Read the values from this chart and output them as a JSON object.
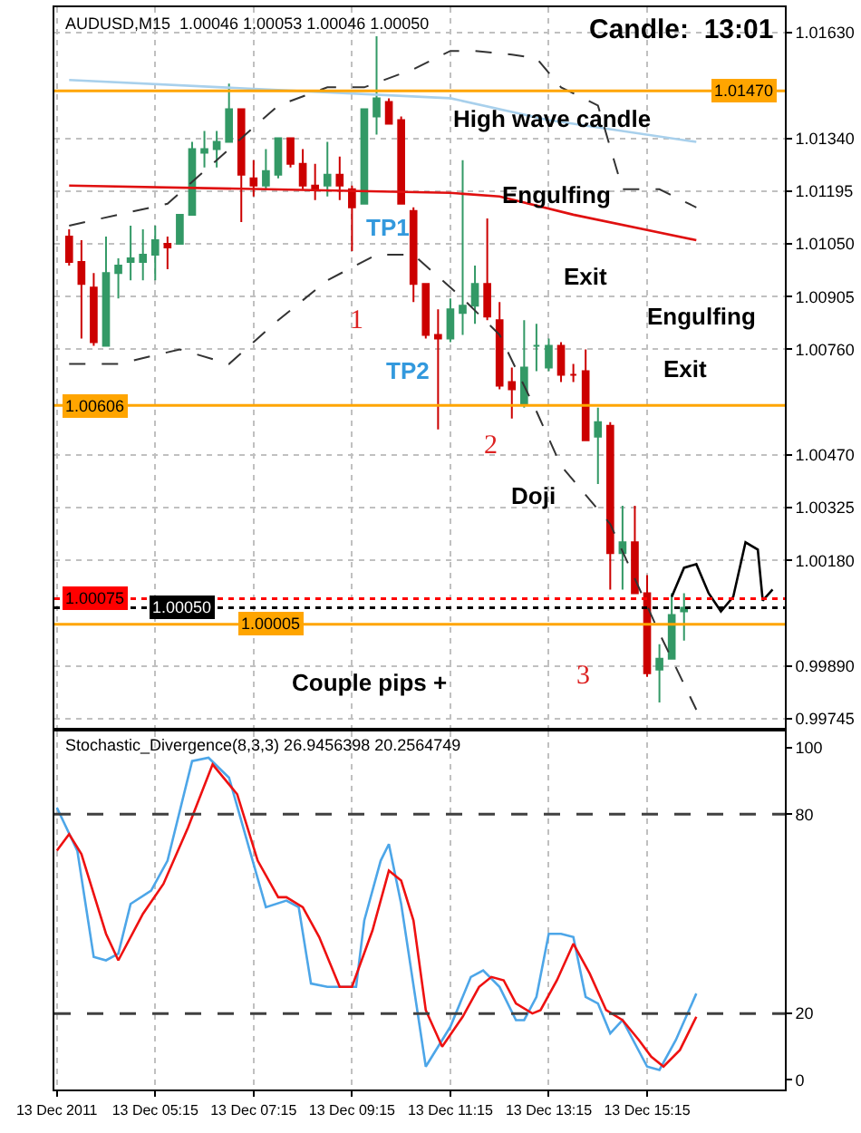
{
  "chart_data": [
    {
      "type": "candlestick",
      "title": "AUDUSD,M15  1.00046 1.00053 1.00046 1.00050",
      "x": [
        "2011-12-13T03:30",
        "2011-12-13T03:45",
        "2011-12-13T04:00",
        "2011-12-13T04:15",
        "2011-12-13T04:30",
        "2011-12-13T04:45",
        "2011-12-13T05:00",
        "2011-12-13T05:15",
        "2011-12-13T05:30",
        "2011-12-13T05:45",
        "2011-12-13T06:00",
        "2011-12-13T06:15",
        "2011-12-13T06:30",
        "2011-12-13T06:45",
        "2011-12-13T07:00",
        "2011-12-13T07:15",
        "2011-12-13T07:30",
        "2011-12-13T07:45",
        "2011-12-13T08:00",
        "2011-12-13T08:15",
        "2011-12-13T08:30",
        "2011-12-13T08:45",
        "2011-12-13T09:00",
        "2011-12-13T09:15",
        "2011-12-13T09:30",
        "2011-12-13T09:45",
        "2011-12-13T10:00",
        "2011-12-13T10:15",
        "2011-12-13T10:30",
        "2011-12-13T10:45",
        "2011-12-13T11:00",
        "2011-12-13T11:15",
        "2011-12-13T11:30",
        "2011-12-13T11:45",
        "2011-12-13T12:00",
        "2011-12-13T12:15",
        "2011-12-13T12:30",
        "2011-12-13T12:45",
        "2011-12-13T13:00",
        "2011-12-13T13:15",
        "2011-12-13T13:30",
        "2011-12-13T13:45",
        "2011-12-13T14:00",
        "2011-12-13T14:15",
        "2011-12-13T14:30",
        "2011-12-13T14:45",
        "2011-12-13T15:00",
        "2011-12-13T15:15",
        "2011-12-13T15:30",
        "2011-12-13T15:45",
        "2011-12-13T16:00"
      ],
      "ohlc": [
        [
          1.0107,
          1.0109,
          1.0099,
          1.01
        ],
        [
          1.01,
          1.0106,
          1.0079,
          1.0094
        ],
        [
          1.0093,
          1.0097,
          1.0077,
          1.0078
        ],
        [
          1.0077,
          1.0107,
          1.0077,
          1.0097
        ],
        [
          1.0097,
          1.0101,
          1.009,
          1.0099
        ],
        [
          1.01,
          1.011,
          1.0095,
          1.0101
        ],
        [
          1.01,
          1.0109,
          1.0095,
          1.0102
        ],
        [
          1.0102,
          1.011,
          1.0095,
          1.0106
        ],
        [
          1.0105,
          1.0107,
          1.0098,
          1.0104
        ],
        [
          1.0105,
          1.0113,
          1.0105,
          1.0113
        ],
        [
          1.0113,
          1.0133,
          1.0113,
          1.0131
        ],
        [
          1.013,
          1.0136,
          1.0126,
          1.0131
        ],
        [
          1.0131,
          1.0136,
          1.0126,
          1.0133
        ],
        [
          1.0133,
          1.0149,
          1.0133,
          1.0142
        ],
        [
          1.0142,
          1.0142,
          1.0111,
          1.0124
        ],
        [
          1.0123,
          1.0128,
          1.0118,
          1.0121
        ],
        [
          1.0121,
          1.0131,
          1.012,
          1.0125
        ],
        [
          1.0124,
          1.0134,
          1.0123,
          1.0134
        ],
        [
          1.0134,
          1.0134,
          1.0126,
          1.0127
        ],
        [
          1.0127,
          1.0131,
          1.012,
          1.0121
        ],
        [
          1.0121,
          1.0127,
          1.0117,
          1.012
        ],
        [
          1.0121,
          1.0133,
          1.0118,
          1.0124
        ],
        [
          1.0124,
          1.0129,
          1.0117,
          1.0121
        ],
        [
          1.012,
          1.0121,
          1.0103,
          1.0115
        ],
        [
          1.0116,
          1.0142,
          1.0116,
          1.0142
        ],
        [
          1.014,
          1.0162,
          1.0135,
          1.0145
        ],
        [
          1.0144,
          1.0145,
          1.0138,
          1.0138
        ],
        [
          1.0139,
          1.014,
          1.0116,
          1.0116
        ],
        [
          1.0114,
          1.0115,
          1.0089,
          1.0094
        ],
        [
          1.0094,
          1.0094,
          1.0079,
          1.008
        ],
        [
          1.008,
          1.0087,
          1.0054,
          1.0079
        ],
        [
          1.0079,
          1.009,
          1.0078,
          1.0087
        ],
        [
          1.0086,
          1.0128,
          1.008,
          1.0088
        ],
        [
          1.0088,
          1.0099,
          1.0083,
          1.0094
        ],
        [
          1.0094,
          1.0112,
          1.0084,
          1.0085
        ],
        [
          1.0084,
          1.0089,
          1.0065,
          1.0066
        ],
        [
          1.0067,
          1.0071,
          1.0057,
          1.0065
        ],
        [
          1.0061,
          1.0084,
          1.006,
          1.0071
        ],
        [
          1.0077,
          1.0083,
          1.007,
          1.0077
        ],
        [
          1.0071,
          1.0079,
          1.007,
          1.0077
        ],
        [
          1.0077,
          1.0078,
          1.0067,
          1.0069
        ],
        [
          1.0069,
          1.0072,
          1.0067,
          1.0069
        ],
        [
          1.007,
          1.0076,
          1.0051,
          1.0051
        ],
        [
          1.0052,
          1.006,
          1.0039,
          1.0056
        ],
        [
          1.0055,
          1.0056,
          1.001,
          1.002
        ],
        [
          1.002,
          1.0033,
          1.001,
          1.0023
        ],
        [
          1.0023,
          1.0033,
          1.0009,
          1.0009
        ],
        [
          1.0009,
          1.0014,
          0.9986,
          0.9987
        ],
        [
          0.9988,
          0.9995,
          0.9979,
          0.9991
        ],
        [
          0.9991,
          1.0009,
          0.9991,
          1.0003
        ],
        [
          1.0004,
          1.0009,
          0.9996,
          1.0005
        ]
      ],
      "colors": [
        "#cc0000",
        "#cc0000",
        "#cc0000",
        "#339966",
        "#339966",
        "#339966",
        "#339966",
        "#339966",
        "#cc0000",
        "#339966",
        "#339966",
        "#339966",
        "#339966",
        "#339966",
        "#cc0000",
        "#cc0000",
        "#339966",
        "#339966",
        "#cc0000",
        "#cc0000",
        "#cc0000",
        "#339966",
        "#cc0000",
        "#cc0000",
        "#339966",
        "#339966",
        "#cc0000",
        "#cc0000",
        "#cc0000",
        "#cc0000",
        "#cc0000",
        "#339966",
        "#339966",
        "#339966",
        "#cc0000",
        "#cc0000",
        "#cc0000",
        "#339966",
        "#339966",
        "#339966",
        "#cc0000",
        "#cc0000",
        "#cc0000",
        "#339966",
        "#cc0000",
        "#339966",
        "#cc0000",
        "#cc0000",
        "#339966",
        "#339966",
        "#339966"
      ],
      "series": [
        {
          "type": "line",
          "color": "#e01010",
          "x": [
            "2011-12-13T03:30",
            "2011-12-13T07:30",
            "2011-12-13T11:15",
            "2011-12-13T12:15",
            "2011-12-13T13:45",
            "2011-12-13T16:15"
          ],
          "values": [
            1.0121,
            1.012,
            1.0119,
            1.0118,
            1.0113,
            1.0106
          ]
        },
        {
          "type": "line",
          "color": "#a8d0ec",
          "x": [
            "2011-12-13T03:30",
            "2011-12-13T11:15",
            "2011-12-13T13:15",
            "2011-12-13T16:15"
          ],
          "values": [
            1.015,
            1.0145,
            1.0139,
            1.0133
          ]
        },
        {
          "type": "line",
          "color": "#333333",
          "line_style": "dashed",
          "x": [
            "2011-12-13T03:30",
            "2011-12-13T05:30",
            "2011-12-13T07:45",
            "2011-12-13T08:45",
            "2011-12-13T09:30",
            "2011-12-13T10:30",
            "2011-12-13T11:15",
            "2011-12-13T11:45",
            "2011-12-13T12:30",
            "2011-12-13T13:00",
            "2011-12-13T13:30",
            "2011-12-13T14:15",
            "2011-12-13T14:45",
            "2011-12-13T15:30",
            "2011-12-13T16:15"
          ],
          "values": [
            1.011,
            1.0116,
            1.0143,
            1.0148,
            1.0148,
            1.0153,
            1.0158,
            1.0158,
            1.0157,
            1.0156,
            1.0148,
            1.0143,
            1.012,
            1.012,
            1.0115
          ]
        },
        {
          "type": "line",
          "color": "#333333",
          "line_style": "dashed",
          "x": [
            "2011-12-13T03:30",
            "2011-12-13T04:30",
            "2011-12-13T05:45",
            "2011-12-13T06:45",
            "2011-12-13T07:45",
            "2011-12-13T08:45",
            "2011-12-13T09:45",
            "2011-12-13T10:30",
            "2011-12-13T11:30",
            "2011-12-13T12:15",
            "2011-12-13T13:00",
            "2011-12-13T13:30",
            "2011-12-13T14:30",
            "2011-12-13T15:30",
            "2011-12-13T16:15"
          ],
          "values": [
            1.0072,
            1.0072,
            1.0076,
            1.0072,
            1.0084,
            1.0095,
            1.0102,
            1.0102,
            1.009,
            1.008,
            1.0059,
            1.0044,
            1.0028,
            0.9998,
            0.9977
          ]
        },
        {
          "type": "line",
          "color": "#000000",
          "x": [
            "2011-12-13T15:45",
            "2011-12-13T16:00",
            "2011-12-13T16:15",
            "2011-12-13T16:30",
            "2011-12-13T16:45",
            "2011-12-13T17:00",
            "2011-12-13T17:15",
            "2011-12-13T17:30",
            "2011-12-13T17:36",
            "2011-12-13T17:48"
          ],
          "values": [
            1.0008,
            1.0016,
            1.0017,
            1.0009,
            1.0004,
            1.0008,
            1.0023,
            1.0021,
            1.0007,
            1.001
          ]
        }
      ],
      "xlim": [
        "2011-12-13T03:12",
        "2011-12-13T18:03"
      ],
      "ylim": [
        0.9972,
        1.017
      ],
      "yticks": [
        {
          "value": 1.0163,
          "label": "1.01630"
        },
        {
          "value": 1.0134,
          "label": "1.01340"
        },
        1.01195,
        {
          "value": 1.0105,
          "label": "1.01050"
        },
        1.00905,
        {
          "value": 1.0076,
          "label": "1.00760"
        },
        {
          "value": 1.0047,
          "label": "1.00470"
        },
        1.00325,
        {
          "value": 1.0018,
          "label": "1.00180"
        },
        {
          "value": 0.9989,
          "label": "0.99890"
        },
        0.99745
      ],
      "grid": true,
      "tick_labels": "y",
      "ref_lines": [
        {
          "axis": "y",
          "value": 1.0147,
          "label": "1.01470",
          "color": "#ffa500"
        },
        {
          "axis": "y",
          "value": 1.00606,
          "label": "1.00606",
          "color": "#ffa500"
        },
        {
          "axis": "y",
          "value": 1.00075,
          "label": "1.00075",
          "color": "#ff0000",
          "line_style": "dotted"
        },
        {
          "axis": "y",
          "value": 1.0005,
          "label": "1.00050",
          "color": "#000000",
          "line_style": "dotted"
        },
        {
          "axis": "y",
          "value": 1.00005,
          "label": "1.00005",
          "color": "#ffa500"
        }
      ],
      "annotations": [
        "Candle:  13:01",
        "High wave candle",
        "Engulfing",
        "Exit",
        "Engulfing",
        "Exit",
        "Doji",
        "Couple pips +",
        "TP1",
        "TP2",
        "1",
        "2",
        "3"
      ]
    },
    {
      "type": "line",
      "title": "Stochastic_Divergence(8,3,3) 26.9456398 20.2564749",
      "series": [
        {
          "color": "#4da6e8",
          "x": [
            "2011-12-13T03:15",
            "2011-12-13T03:40",
            "2011-12-13T04:00",
            "2011-12-13T04:15",
            "2011-12-13T04:30",
            "2011-12-13T04:45",
            "2011-12-13T05:10",
            "2011-12-13T05:30",
            "2011-12-13T06:00",
            "2011-12-13T06:20",
            "2011-12-13T06:45",
            "2011-12-13T07:30",
            "2011-12-13T07:55",
            "2011-12-13T08:10",
            "2011-12-13T08:25",
            "2011-12-13T08:45",
            "2011-12-13T09:00",
            "2011-12-13T09:20",
            "2011-12-13T09:30",
            "2011-12-13T09:50",
            "2011-12-13T10:00",
            "2011-12-13T10:15",
            "2011-12-13T10:45",
            "2011-12-13T11:00",
            "2011-12-13T11:15",
            "2011-12-13T11:40",
            "2011-12-13T11:55",
            "2011-12-13T12:15",
            "2011-12-13T12:35",
            "2011-12-13T12:45",
            "2011-12-13T13:00",
            "2011-12-13T13:15",
            "2011-12-13T13:30",
            "2011-12-13T13:45",
            "2011-12-13T14:00",
            "2011-12-13T14:15",
            "2011-12-13T14:30",
            "2011-12-13T14:45",
            "2011-12-13T15:15",
            "2011-12-13T15:30",
            "2011-12-13T15:50",
            "2011-12-13T16:15"
          ],
          "values": [
            82,
            69,
            37,
            36,
            38,
            53,
            57,
            66,
            96,
            97,
            91,
            52,
            54,
            52,
            29,
            28,
            28,
            28,
            48,
            66,
            71,
            53,
            4,
            10,
            16,
            31,
            33,
            28,
            18,
            18,
            25,
            44,
            44,
            43,
            25,
            23,
            14,
            18,
            4,
            3,
            12,
            26
          ]
        },
        {
          "color": "#ee1111",
          "x": [
            "2011-12-13T03:15",
            "2011-12-13T03:30",
            "2011-12-13T03:45",
            "2011-12-13T04:15",
            "2011-12-13T04:30",
            "2011-12-13T05:00",
            "2011-12-13T05:25",
            "2011-12-13T05:55",
            "2011-12-13T06:25",
            "2011-12-13T06:55",
            "2011-12-13T07:20",
            "2011-12-13T07:45",
            "2011-12-13T07:55",
            "2011-12-13T08:15",
            "2011-12-13T08:35",
            "2011-12-13T09:00",
            "2011-12-13T09:15",
            "2011-12-13T09:40",
            "2011-12-13T10:00",
            "2011-12-13T10:15",
            "2011-12-13T10:30",
            "2011-12-13T10:45",
            "2011-12-13T11:05",
            "2011-12-13T11:30",
            "2011-12-13T11:50",
            "2011-12-13T12:05",
            "2011-12-13T12:20",
            "2011-12-13T12:35",
            "2011-12-13T12:55",
            "2011-12-13T13:05",
            "2011-12-13T13:25",
            "2011-12-13T13:45",
            "2011-12-13T14:05",
            "2011-12-13T14:25",
            "2011-12-13T14:45",
            "2011-12-13T15:05",
            "2011-12-13T15:20",
            "2011-12-13T15:35",
            "2011-12-13T15:55",
            "2011-12-13T16:15"
          ],
          "values": [
            69,
            74,
            68,
            44,
            36,
            50,
            59,
            76,
            95,
            86,
            66,
            55,
            55,
            52,
            43,
            28,
            28,
            45,
            63,
            60,
            48,
            21,
            10,
            19,
            28,
            31,
            30,
            23,
            20,
            21,
            30,
            41,
            32,
            21,
            18,
            12,
            7,
            4,
            9,
            19
          ]
        }
      ],
      "xlim": [
        "2011-12-13T03:12",
        "2011-12-13T18:03"
      ],
      "xticks": [
        {
          "value": "2011-12-13T03:15",
          "label": "13 Dec 2011"
        },
        {
          "value": "2011-12-13T05:15",
          "label": "13 Dec 05:15"
        },
        {
          "value": "2011-12-13T07:15",
          "label": "13 Dec 07:15"
        },
        {
          "value": "2011-12-13T09:15",
          "label": "13 Dec 09:15"
        },
        {
          "value": "2011-12-13T11:15",
          "label": "13 Dec 11:15"
        },
        {
          "value": "2011-12-13T13:15",
          "label": "13 Dec 13:15"
        },
        {
          "value": "2011-12-13T15:15",
          "label": "13 Dec 15:15"
        }
      ],
      "ylim": [
        -3,
        105
      ],
      "yticks": [
        0,
        20,
        80,
        100
      ],
      "grid": "x",
      "ref_lines": [
        {
          "axis": "y",
          "value": 80,
          "color": "#404040",
          "line_style": "dashed"
        },
        {
          "axis": "y",
          "value": 20,
          "color": "#404040",
          "line_style": "dashed"
        }
      ]
    }
  ]
}
